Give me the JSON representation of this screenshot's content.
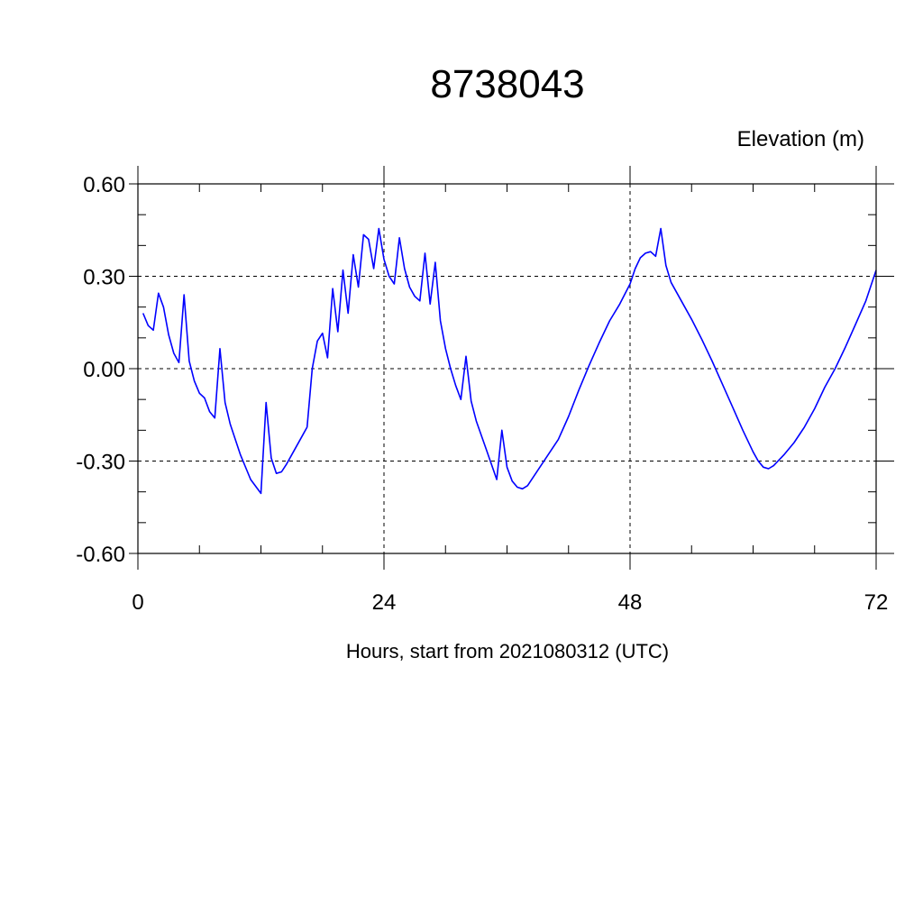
{
  "chart_data": {
    "type": "line",
    "title": "8738043",
    "subtitle": "Elevation (m)",
    "xlabel": "Hours, start from 2021080312 (UTC)",
    "ylabel": "",
    "xlim": [
      0,
      72
    ],
    "ylim": [
      -0.6,
      0.6
    ],
    "x_ticks": [
      0,
      24,
      48,
      72
    ],
    "x_tick_labels": [
      "0",
      "24",
      "48",
      "72"
    ],
    "y_ticks": [
      -0.6,
      -0.3,
      0.0,
      0.3,
      0.6
    ],
    "y_tick_labels": [
      "-0.60",
      "-0.30",
      "0.00",
      "0.30",
      "0.60"
    ],
    "grid": true,
    "grid_style": "dashed",
    "line_color": "#0000ff",
    "series": [
      {
        "x": [
          0.5,
          1.0,
          1.5,
          2.0,
          2.5,
          3.0,
          3.5,
          4.0,
          4.5,
          5.0,
          5.5,
          6.0,
          6.5,
          7.0,
          7.5,
          8.0,
          8.5,
          9.0,
          9.5,
          10.0,
          11.0,
          12.0,
          12.5,
          13.0,
          13.5,
          14.0,
          14.5,
          15.0,
          16.0,
          16.5,
          17.0,
          17.5,
          18.0,
          18.5,
          19.0,
          19.5,
          20.0,
          20.5,
          21.0,
          21.5,
          22.0,
          22.5,
          23.0,
          23.5,
          24.0,
          24.5,
          25.0,
          25.5,
          26.0,
          26.5,
          27.0,
          27.5,
          28.0,
          28.5,
          29.0,
          29.5,
          30.0,
          30.5,
          31.0,
          31.5,
          32.0,
          32.5,
          33.0,
          34.0,
          35.0,
          35.5,
          36.0,
          36.5,
          37.0,
          37.5,
          38.0,
          39.0,
          40.0,
          41.0,
          42.0,
          43.0,
          44.0,
          45.0,
          46.0,
          47.0,
          48.0,
          48.5,
          49.0,
          49.5,
          50.0,
          50.5,
          51.0,
          51.5,
          52.0,
          53.0,
          54.0,
          55.0,
          56.0,
          57.0,
          58.0,
          59.0,
          60.0,
          60.5,
          61.0,
          61.5,
          62.0,
          63.0,
          64.0,
          65.0,
          66.0,
          67.0,
          68.0,
          69.0,
          70.0,
          71.0,
          72.0
        ],
        "y": [
          0.18,
          0.14,
          0.125,
          0.245,
          0.2,
          0.11,
          0.05,
          0.02,
          0.24,
          0.025,
          -0.04,
          -0.08,
          -0.095,
          -0.14,
          -0.16,
          0.065,
          -0.11,
          -0.18,
          -0.23,
          -0.28,
          -0.36,
          -0.405,
          -0.11,
          -0.29,
          -0.34,
          -0.335,
          -0.31,
          -0.28,
          -0.22,
          -0.19,
          0.0,
          0.09,
          0.115,
          0.035,
          0.26,
          0.12,
          0.32,
          0.18,
          0.37,
          0.265,
          0.435,
          0.42,
          0.325,
          0.455,
          0.355,
          0.3,
          0.275,
          0.425,
          0.325,
          0.265,
          0.235,
          0.22,
          0.375,
          0.21,
          0.345,
          0.155,
          0.065,
          0.0,
          -0.055,
          -0.1,
          0.04,
          -0.105,
          -0.17,
          -0.265,
          -0.36,
          -0.2,
          -0.32,
          -0.365,
          -0.385,
          -0.39,
          -0.38,
          -0.33,
          -0.28,
          -0.23,
          -0.155,
          -0.07,
          0.01,
          0.085,
          0.155,
          0.21,
          0.275,
          0.325,
          0.36,
          0.375,
          0.38,
          0.365,
          0.455,
          0.335,
          0.28,
          0.22,
          0.16,
          0.095,
          0.025,
          -0.05,
          -0.125,
          -0.2,
          -0.27,
          -0.3,
          -0.32,
          -0.325,
          -0.315,
          -0.28,
          -0.24,
          -0.19,
          -0.13,
          -0.06,
          0.0,
          0.07,
          0.145,
          0.22,
          0.32
        ]
      }
    ]
  }
}
